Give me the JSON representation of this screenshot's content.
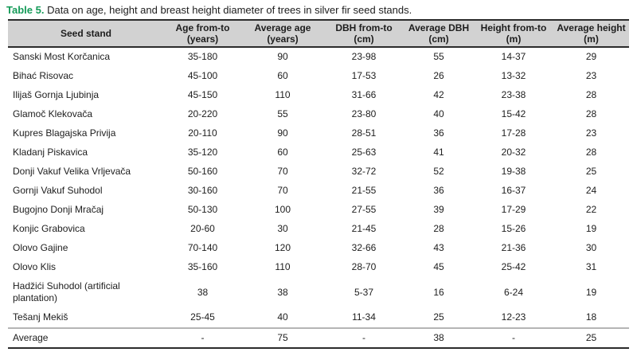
{
  "title": {
    "label": "Table 5.",
    "text": "Data on age, height and breast height diameter of trees in silver fir seed stands."
  },
  "colors": {
    "accent_green": "#169b59",
    "header_bg": "#d2d2d2",
    "text": "#1d1d1d",
    "border_dark": "#2b2b2b",
    "border_light": "#b5b5b5"
  },
  "table": {
    "columns": [
      {
        "label": "Seed stand",
        "unit": ""
      },
      {
        "label": "Age from-to",
        "unit": "(years)"
      },
      {
        "label": "Average age",
        "unit": "(years)"
      },
      {
        "label": "DBH from-to",
        "unit": "(cm)"
      },
      {
        "label": "Average DBH",
        "unit": "(cm)"
      },
      {
        "label": "Height from-to",
        "unit": "(m)"
      },
      {
        "label": "Average height",
        "unit": "(m)"
      }
    ],
    "rows": [
      [
        "Sanski Most Korčanica",
        "35-180",
        "90",
        "23-98",
        "55",
        "14-37",
        "29"
      ],
      [
        "Bihać Risovac",
        "45-100",
        "60",
        "17-53",
        "26",
        "13-32",
        "23"
      ],
      [
        "Ilijaš Gornja Ljubinja",
        "45-150",
        "110",
        "31-66",
        "42",
        "23-38",
        "28"
      ],
      [
        "Glamoč Klekovača",
        "20-220",
        "55",
        "23-80",
        "40",
        "15-42",
        "28"
      ],
      [
        "Kupres Blagajska Privija",
        "20-110",
        "90",
        "28-51",
        "36",
        "17-28",
        "23"
      ],
      [
        "Kladanj Piskavica",
        "35-120",
        "60",
        "25-63",
        "41",
        "20-32",
        "28"
      ],
      [
        "Donji Vakuf Velika Vrljevača",
        "50-160",
        "70",
        "32-72",
        "52",
        "19-38",
        "25"
      ],
      [
        "Gornji Vakuf Suhodol",
        "30-160",
        "70",
        "21-55",
        "36",
        "16-37",
        "24"
      ],
      [
        "Bugojno Donji Mračaj",
        "50-130",
        "100",
        "27-55",
        "39",
        "17-29",
        "22"
      ],
      [
        "Konjic Grabovica",
        "20-60",
        "30",
        "21-45",
        "28",
        "15-26",
        "19"
      ],
      [
        "Olovo Gajine",
        "70-140",
        "120",
        "32-66",
        "43",
        "21-36",
        "30"
      ],
      [
        "Olovo Klis",
        "35-160",
        "110",
        "28-70",
        "45",
        "25-42",
        "31"
      ],
      [
        "Hadžići Suhodol (artificial plantation)",
        "38",
        "38",
        "5-37",
        "16",
        "6-24",
        "19"
      ],
      [
        "Tešanj Mekiš",
        "25-45",
        "40",
        "11-34",
        "25",
        "12-23",
        "18"
      ]
    ],
    "footer_row": [
      "Average",
      "-",
      "75",
      "-",
      "38",
      "-",
      "25"
    ]
  }
}
